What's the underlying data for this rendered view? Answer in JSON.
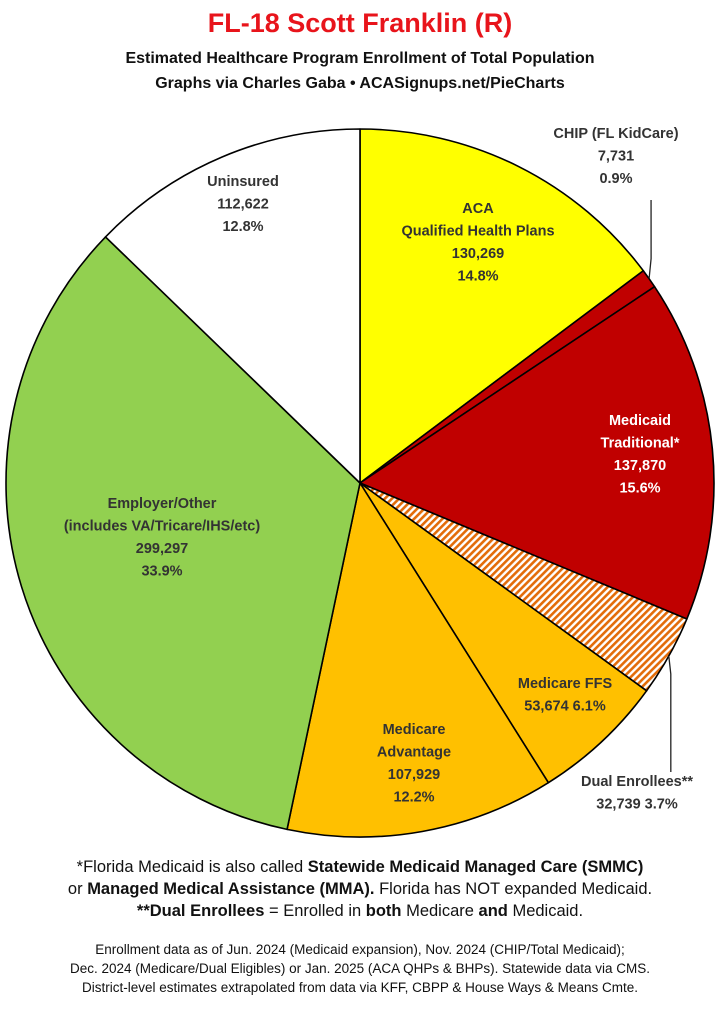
{
  "title": "FL-18 Scott Franklin (R)",
  "subtitle_1": "Estimated Healthcare Program Enrollment of Total Population",
  "subtitle_2": "Graphs via Charles Gaba  •  ACASignups.net/PieCharts",
  "chart_data": {
    "type": "pie",
    "start_angle_deg": 0,
    "direction": "clockwise",
    "slices": [
      {
        "key": "aca",
        "lines": [
          "ACA",
          "Qualified Health Plans"
        ],
        "value": 130269,
        "value_text": "130,269",
        "percent_text": "14.8%",
        "color": "#ffff00",
        "label_color": "#333333"
      },
      {
        "key": "chip",
        "lines": [
          "CHIP (FL KidCare)"
        ],
        "value": 7731,
        "value_text": "7,731",
        "percent_text": "0.9%",
        "color": "#c00000",
        "label_color": "#333333"
      },
      {
        "key": "medicaid",
        "lines": [
          "Medicaid",
          "Traditional*"
        ],
        "value": 137870,
        "value_text": "137,870",
        "percent_text": "15.6%",
        "color": "#c00000",
        "label_color": "#ffffff"
      },
      {
        "key": "dual",
        "lines": [
          "Dual Enrollees**"
        ],
        "value": 32739,
        "value_text": "32,739",
        "percent_text": "3.7%",
        "color": "#e36c09",
        "pattern": "hatch",
        "label_color": "#333333"
      },
      {
        "key": "ffs",
        "lines": [
          "Medicare FFS"
        ],
        "value": 53674,
        "value_text": "53,674",
        "percent_text": "6.1%",
        "color": "#ffc000",
        "label_color": "#333333"
      },
      {
        "key": "advantage",
        "lines": [
          "Medicare",
          "Advantage"
        ],
        "value": 107929,
        "value_text": "107,929",
        "percent_text": "12.2%",
        "color": "#ffc000",
        "label_color": "#333333"
      },
      {
        "key": "employer",
        "lines": [
          "Employer/Other",
          "(includes VA/Tricare/IHS/etc)"
        ],
        "value": 299297,
        "value_text": "299,297",
        "percent_text": "33.9%",
        "color": "#92d050",
        "label_color": "#333333"
      },
      {
        "key": "uninsured",
        "lines": [
          "Uninsured"
        ],
        "value": 112622,
        "value_text": "112,622",
        "percent_text": "12.8%",
        "color": "#ffffff",
        "label_color": "#333333"
      }
    ]
  },
  "notes": {
    "line1_a": "*Florida Medicaid is also called ",
    "line1_b": "Statewide Medicaid Managed Care (SMMC)",
    "line2_a": "or ",
    "line2_b": "Managed Medical Assistance (MMA).",
    "line2_c": " Florida has NOT expanded Medicaid.",
    "line3_a": "**Dual Enrollees",
    "line3_b": " = Enrolled in ",
    "line3_c": "both",
    "line3_d": " Medicare ",
    "line3_e": "and",
    "line3_f": " Medicaid."
  },
  "source": {
    "line1": "Enrollment data as of Jun. 2024 (Medicaid expansion), Nov. 2024 (CHIP/Total Medicaid);",
    "line2": "Dec. 2024 (Medicare/Dual Eligibles) or Jan. 2025 (ACA QHPs & BHPs). Statewide data via CMS.",
    "line3": "District-level estimates extrapolated from data via KFF, CBPP & House Ways & Means Cmte."
  }
}
